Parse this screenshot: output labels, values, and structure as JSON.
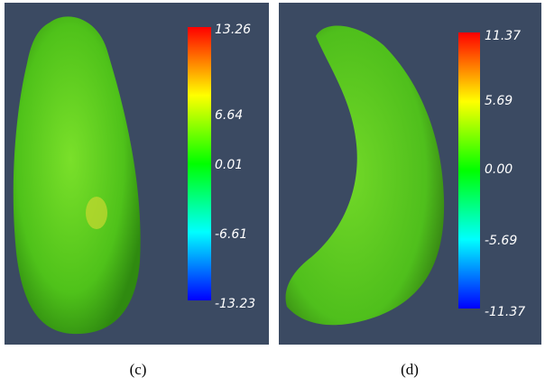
{
  "panels": [
    {
      "colorbar_labels": [
        "13.26",
        "6.64",
        "0.01",
        "-6.61",
        "-13.23"
      ],
      "caption": "(c)"
    },
    {
      "colorbar_labels": [
        "11.37",
        "5.69",
        "0.00",
        "-5.69",
        "-11.37"
      ],
      "caption": "(d)"
    }
  ]
}
